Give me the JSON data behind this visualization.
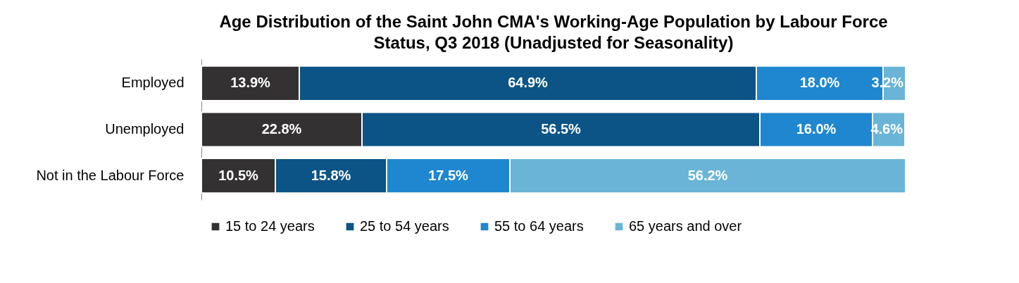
{
  "chart_data": {
    "type": "bar",
    "orientation": "horizontal",
    "stacked": true,
    "title": "Age Distribution of the Saint John CMA's Working-Age Population by Labour Force Status, Q3 2018 (Unadjusted for Seasonality)",
    "categories": [
      "Employed",
      "Unemployed",
      "Not in the Labour Force"
    ],
    "series": [
      {
        "name": "15 to 24 years",
        "color": "#333132",
        "values": [
          13.9,
          22.8,
          10.5
        ],
        "value_labels": [
          "13.9%",
          "22.8%",
          "10.5%"
        ]
      },
      {
        "name": "25 to 54 years",
        "color": "#0b5485",
        "values": [
          64.9,
          56.5,
          15.8
        ],
        "value_labels": [
          "64.9%",
          "56.5%",
          "15.8%"
        ]
      },
      {
        "name": "55 to 64 years",
        "color": "#1f87cf",
        "values": [
          18.0,
          16.0,
          17.5
        ],
        "value_labels": [
          "18.0%",
          "16.0%",
          "17.5%"
        ]
      },
      {
        "name": "65 years and over",
        "color": "#6ab4d8",
        "values": [
          3.2,
          4.6,
          56.2
        ],
        "value_labels": [
          "3.2%",
          "4.6%",
          "56.2%"
        ]
      }
    ],
    "legend": "bottom",
    "grid": false
  }
}
